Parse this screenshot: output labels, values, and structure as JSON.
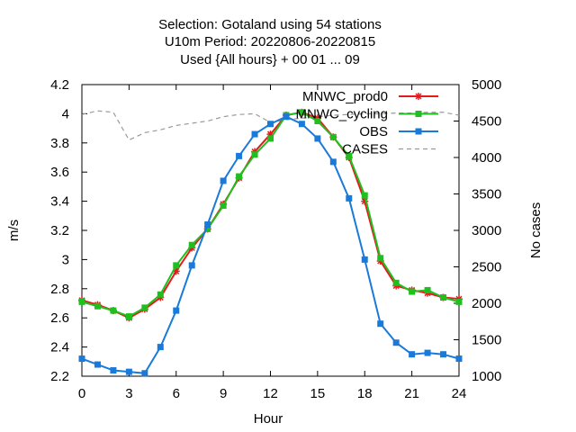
{
  "chart_data": {
    "type": "line",
    "title_lines": [
      "Selection: Gotaland using    54 stations",
      "U10m   Period: 20220806-20220815",
      "Used {All hours} + 00 01 ... 09"
    ],
    "xlabel": "Hour",
    "ylabel": "m/s",
    "y2label": "No cases",
    "xlim": [
      0,
      24
    ],
    "ylim": [
      2.2,
      4.2
    ],
    "y2lim": [
      1000,
      5000
    ],
    "x_ticks": [
      0,
      3,
      6,
      9,
      12,
      15,
      18,
      21,
      24
    ],
    "y_ticks": [
      "2.2",
      "2.4",
      "2.6",
      "2.8",
      "3",
      "3.2",
      "3.4",
      "3.6",
      "3.8",
      "4",
      "4.2"
    ],
    "y2_ticks": [
      "1000",
      "1500",
      "2000",
      "2500",
      "3000",
      "3500",
      "4000",
      "4500",
      "5000"
    ],
    "legend_position": "top-right",
    "x": [
      0,
      1,
      2,
      3,
      4,
      5,
      6,
      7,
      8,
      9,
      10,
      11,
      12,
      13,
      14,
      15,
      16,
      17,
      18,
      19,
      20,
      21,
      22,
      23,
      24
    ],
    "series": [
      {
        "name": "MNWC_prod0",
        "color": "#e41a1c",
        "axis": "left",
        "marker": "asterisk",
        "values": [
          2.72,
          2.69,
          2.65,
          2.6,
          2.66,
          2.74,
          2.92,
          3.08,
          3.21,
          3.38,
          3.56,
          3.74,
          3.86,
          3.99,
          4.01,
          3.97,
          3.84,
          3.7,
          3.4,
          2.99,
          2.82,
          2.79,
          2.77,
          2.74,
          2.73
        ]
      },
      {
        "name": "MNWC_cycling",
        "color": "#1fbf1f",
        "axis": "left",
        "marker": "square",
        "values": [
          2.71,
          2.68,
          2.65,
          2.61,
          2.67,
          2.76,
          2.96,
          3.1,
          3.21,
          3.37,
          3.57,
          3.72,
          3.83,
          3.99,
          4.01,
          3.95,
          3.84,
          3.71,
          3.44,
          3.01,
          2.84,
          2.78,
          2.79,
          2.74,
          2.71
        ]
      },
      {
        "name": "OBS",
        "color": "#1a7ad9",
        "axis": "left",
        "marker": "square",
        "values": [
          2.32,
          2.28,
          2.24,
          2.23,
          2.22,
          2.4,
          2.65,
          2.96,
          3.24,
          3.54,
          3.71,
          3.86,
          3.93,
          3.98,
          3.93,
          3.83,
          3.67,
          3.42,
          3.0,
          2.56,
          2.43,
          2.35,
          2.36,
          2.35,
          2.32
        ]
      },
      {
        "name": "CASES",
        "color": "#999999",
        "axis": "right",
        "marker": "none",
        "dashed": true,
        "values": [
          4590,
          4640,
          4620,
          4240,
          4340,
          4380,
          4440,
          4470,
          4500,
          4560,
          4590,
          4600,
          4480,
          4520,
          4540,
          4560,
          4580,
          4590,
          4600,
          4600,
          4610,
          4610,
          4620,
          4620,
          4580
        ]
      }
    ]
  }
}
